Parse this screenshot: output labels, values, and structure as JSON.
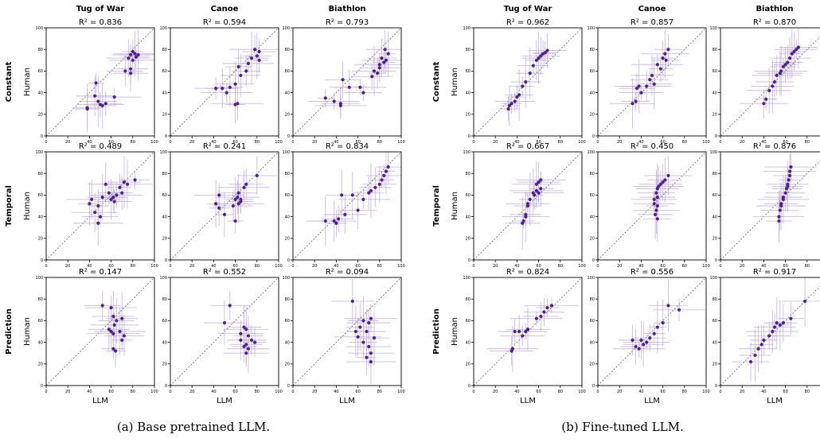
{
  "colors": {
    "marker": "#4b2391",
    "errorbar": "#b9a4dc",
    "diagonal": "#666666",
    "axis": "#000000"
  },
  "figure": {
    "group_captions": [
      "(a) Base pretrained LLM.",
      "(b) Fine-tuned LLM."
    ],
    "column_titles": [
      "Tug of War",
      "Canoe",
      "Biathlon"
    ],
    "row_titles": [
      "Constant",
      "Temporal",
      "Prediction"
    ],
    "xlabel": "LLM",
    "ylabel": "Human",
    "ticks": [
      "0",
      "20",
      "40",
      "60",
      "80",
      "100"
    ]
  },
  "chart_data": [
    {
      "type": "scatter",
      "group": "(a) Base pretrained LLM.",
      "row": "Constant",
      "col": "Tug of War",
      "r2_label": "R² = 0.836",
      "xlim": [
        0,
        100
      ],
      "ylim": [
        0,
        100
      ],
      "xlabel": "",
      "ylabel": "Human",
      "grid": false,
      "x": [
        80,
        82,
        78,
        85,
        83,
        80,
        76,
        78,
        73,
        78,
        46,
        45,
        48,
        55,
        50,
        52,
        38,
        38,
        63
      ],
      "y": [
        78,
        76,
        75,
        75,
        73,
        70,
        72,
        62,
        60,
        58,
        49,
        37,
        32,
        30,
        29,
        28,
        26,
        25,
        36
      ]
    },
    {
      "type": "scatter",
      "group": "(a) Base pretrained LLM.",
      "row": "Constant",
      "col": "Canoe",
      "r2_label": "R² = 0.594",
      "xlim": [
        0,
        100
      ],
      "ylim": [
        0,
        100
      ],
      "xlabel": "",
      "ylabel": "",
      "grid": false,
      "x": [
        78,
        82,
        80,
        75,
        82,
        72,
        63,
        70,
        65,
        60,
        48,
        55,
        52,
        62,
        60,
        42
      ],
      "y": [
        80,
        78,
        74,
        72,
        70,
        67,
        64,
        60,
        56,
        48,
        44,
        45,
        40,
        30,
        29,
        44
      ]
    },
    {
      "type": "scatter",
      "group": "(a) Base pretrained LLM.",
      "row": "Constant",
      "col": "Biathlon",
      "r2_label": "R² = 0.793",
      "xlim": [
        0,
        100
      ],
      "ylim": [
        0,
        100
      ],
      "xlabel": "",
      "ylabel": "",
      "grid": false,
      "x": [
        85,
        88,
        82,
        86,
        84,
        80,
        80,
        75,
        78,
        73,
        62,
        65,
        46,
        52,
        44,
        44,
        38,
        30
      ],
      "y": [
        80,
        76,
        72,
        70,
        68,
        66,
        63,
        60,
        58,
        55,
        45,
        40,
        52,
        45,
        30,
        28,
        32,
        35
      ]
    },
    {
      "type": "scatter",
      "group": "(a) Base pretrained LLM.",
      "row": "Temporal",
      "col": "Tug of War",
      "r2_label": "R² = 0.489",
      "xlim": [
        0,
        100
      ],
      "ylim": [
        0,
        100
      ],
      "xlabel": "",
      "ylabel": "Human",
      "grid": false,
      "x": [
        82,
        75,
        72,
        68,
        70,
        65,
        62,
        58,
        55,
        60,
        63,
        52,
        48,
        45,
        40,
        50,
        48,
        42
      ],
      "y": [
        74,
        70,
        72,
        67,
        62,
        60,
        58,
        62,
        70,
        56,
        54,
        58,
        50,
        44,
        52,
        40,
        34,
        56
      ]
    },
    {
      "type": "scatter",
      "group": "(a) Base pretrained LLM.",
      "row": "Temporal",
      "col": "Canoe",
      "r2_label": "R² = 0.241",
      "xlim": [
        0,
        100
      ],
      "ylim": [
        0,
        100
      ],
      "xlabel": "",
      "ylabel": "",
      "grid": false,
      "x": [
        80,
        70,
        68,
        62,
        60,
        65,
        63,
        58,
        45,
        42,
        45,
        50,
        60,
        65,
        63
      ],
      "y": [
        78,
        70,
        67,
        58,
        56,
        54,
        52,
        50,
        60,
        52,
        48,
        42,
        36,
        56,
        62
      ]
    },
    {
      "type": "scatter",
      "group": "(a) Base pretrained LLM.",
      "row": "Temporal",
      "col": "Biathlon",
      "r2_label": "R² = 0.834",
      "xlim": [
        0,
        100
      ],
      "ylim": [
        0,
        100
      ],
      "xlabel": "",
      "ylabel": "",
      "grid": false,
      "x": [
        88,
        86,
        84,
        82,
        80,
        76,
        72,
        70,
        65,
        60,
        55,
        45,
        48,
        42,
        40,
        38,
        30
      ],
      "y": [
        86,
        82,
        78,
        74,
        70,
        67,
        64,
        62,
        56,
        46,
        60,
        60,
        42,
        38,
        34,
        36,
        36
      ]
    },
    {
      "type": "scatter",
      "group": "(a) Base pretrained LLM.",
      "row": "Prediction",
      "col": "Tug of War",
      "r2_label": "R² = 0.147",
      "xlim": [
        0,
        100
      ],
      "ylim": [
        0,
        100
      ],
      "xlabel": "",
      "ylabel": "Human",
      "grid": false,
      "x": [
        52,
        60,
        62,
        65,
        70,
        63,
        58,
        60,
        62,
        68,
        72,
        70,
        62,
        64
      ],
      "y": [
        74,
        72,
        64,
        60,
        62,
        56,
        52,
        50,
        48,
        50,
        46,
        42,
        34,
        32
      ]
    },
    {
      "type": "scatter",
      "group": "(a) Base pretrained LLM.",
      "row": "Prediction",
      "col": "Canoe",
      "r2_label": "R² = 0.552",
      "xlim": [
        0,
        100
      ],
      "ylim": [
        0,
        100
      ],
      "xlabel": "",
      "ylabel": "",
      "grid": false,
      "x": [
        55,
        50,
        68,
        70,
        65,
        72,
        75,
        78,
        70,
        65,
        68,
        72,
        70
      ],
      "y": [
        74,
        58,
        54,
        52,
        48,
        46,
        42,
        40,
        38,
        42,
        36,
        34,
        30
      ]
    },
    {
      "type": "scatter",
      "group": "(a) Base pretrained LLM.",
      "row": "Prediction",
      "col": "Biathlon",
      "r2_label": "R² = 0.094",
      "xlim": [
        0,
        100
      ],
      "ylim": [
        0,
        100
      ],
      "xlabel": "",
      "ylabel": "",
      "grid": false,
      "x": [
        55,
        65,
        70,
        62,
        58,
        60,
        72,
        68,
        65,
        72,
        75,
        70,
        68,
        72
      ],
      "y": [
        78,
        60,
        58,
        54,
        50,
        45,
        62,
        50,
        40,
        30,
        44,
        36,
        26,
        22
      ]
    },
    {
      "type": "scatter",
      "group": "(b) Fine-tuned LLM.",
      "row": "Constant",
      "col": "Tug of War",
      "r2_label": "R² = 0.962",
      "xlim": [
        0,
        100
      ],
      "ylim": [
        0,
        100
      ],
      "xlabel": "",
      "ylabel": "Human",
      "grid": false,
      "x": [
        68,
        66,
        64,
        62,
        60,
        58,
        55,
        52,
        48,
        45,
        42,
        40,
        38,
        35,
        33,
        32
      ],
      "y": [
        79,
        77,
        76,
        74,
        72,
        70,
        65,
        58,
        50,
        46,
        38,
        36,
        32,
        30,
        28,
        25
      ]
    },
    {
      "type": "scatter",
      "group": "(b) Fine-tuned LLM.",
      "row": "Constant",
      "col": "Canoe",
      "r2_label": "R² = 0.857",
      "xlim": [
        0,
        100
      ],
      "ylim": [
        0,
        100
      ],
      "xlabel": "",
      "ylabel": "",
      "grid": false,
      "x": [
        65,
        62,
        60,
        63,
        55,
        58,
        50,
        48,
        52,
        45,
        38,
        36,
        40,
        35,
        32
      ],
      "y": [
        80,
        76,
        72,
        70,
        66,
        62,
        56,
        52,
        48,
        46,
        46,
        44,
        40,
        32,
        30
      ]
    },
    {
      "type": "scatter",
      "group": "(b) Fine-tuned LLM.",
      "row": "Constant",
      "col": "Biathlon",
      "r2_label": "R² = 0.870",
      "xlim": [
        0,
        100
      ],
      "ylim": [
        0,
        100
      ],
      "xlabel": "",
      "ylabel": "",
      "grid": false,
      "x": [
        72,
        70,
        68,
        66,
        64,
        62,
        60,
        58,
        56,
        55,
        52,
        50,
        48,
        45,
        42,
        40
      ],
      "y": [
        82,
        80,
        78,
        76,
        72,
        68,
        66,
        64,
        60,
        58,
        56,
        50,
        46,
        42,
        34,
        30
      ]
    },
    {
      "type": "scatter",
      "group": "(b) Fine-tuned LLM.",
      "row": "Temporal",
      "col": "Tug of War",
      "r2_label": "R² = 0.667",
      "xlim": [
        0,
        100
      ],
      "ylim": [
        0,
        100
      ],
      "xlabel": "",
      "ylabel": "Human",
      "grid": false,
      "x": [
        62,
        60,
        58,
        62,
        58,
        55,
        60,
        56,
        52,
        50,
        50,
        48,
        48,
        46,
        45
      ],
      "y": [
        74,
        72,
        70,
        66,
        64,
        62,
        62,
        60,
        56,
        52,
        50,
        42,
        40,
        36,
        34
      ]
    },
    {
      "type": "scatter",
      "group": "(b) Fine-tuned LLM.",
      "row": "Temporal",
      "col": "Canoe",
      "r2_label": "R² = 0.450",
      "xlim": [
        0,
        100
      ],
      "ylim": [
        0,
        100
      ],
      "xlabel": "",
      "ylabel": "",
      "grid": false,
      "x": [
        65,
        62,
        60,
        58,
        56,
        55,
        54,
        55,
        52,
        52,
        55,
        54,
        53,
        55
      ],
      "y": [
        78,
        74,
        72,
        70,
        68,
        66,
        62,
        58,
        56,
        52,
        50,
        46,
        42,
        38
      ]
    },
    {
      "type": "scatter",
      "group": "(b) Fine-tuned LLM.",
      "row": "Temporal",
      "col": "Biathlon",
      "r2_label": "R² = 0.876",
      "xlim": [
        0,
        100
      ],
      "ylim": [
        0,
        100
      ],
      "xlabel": "",
      "ylabel": "",
      "grid": false,
      "x": [
        65,
        64,
        64,
        63,
        62,
        62,
        61,
        60,
        58,
        58,
        56,
        56,
        55,
        54,
        54
      ],
      "y": [
        86,
        82,
        78,
        74,
        70,
        68,
        66,
        62,
        58,
        56,
        52,
        50,
        46,
        40,
        36
      ]
    },
    {
      "type": "scatter",
      "group": "(b) Fine-tuned LLM.",
      "row": "Prediction",
      "col": "Tug of War",
      "r2_label": "R² = 0.824",
      "xlim": [
        0,
        100
      ],
      "ylim": [
        0,
        100
      ],
      "xlabel": "",
      "ylabel": "Human",
      "grid": false,
      "x": [
        72,
        68,
        65,
        62,
        58,
        50,
        48,
        45,
        42,
        38,
        36,
        35
      ],
      "y": [
        74,
        72,
        68,
        64,
        62,
        52,
        50,
        46,
        50,
        50,
        34,
        32
      ]
    },
    {
      "type": "scatter",
      "group": "(b) Fine-tuned LLM.",
      "row": "Prediction",
      "col": "Canoe",
      "r2_label": "R² = 0.556",
      "xlim": [
        0,
        100
      ],
      "ylim": [
        0,
        100
      ],
      "xlabel": "",
      "ylabel": "",
      "grid": false,
      "x": [
        75,
        65,
        60,
        55,
        52,
        48,
        45,
        42,
        40,
        38,
        35,
        32
      ],
      "y": [
        70,
        74,
        58,
        54,
        48,
        44,
        40,
        38,
        42,
        34,
        36,
        42
      ]
    },
    {
      "type": "scatter",
      "group": "(b) Fine-tuned LLM.",
      "row": "Prediction",
      "col": "Biathlon",
      "r2_label": "R² = 0.917",
      "xlim": [
        0,
        100
      ],
      "ylim": [
        0,
        100
      ],
      "xlabel": "",
      "ylabel": "",
      "grid": false,
      "x": [
        78,
        65,
        58,
        55,
        52,
        50,
        48,
        45,
        40,
        38,
        35,
        32,
        28
      ],
      "y": [
        78,
        62,
        58,
        56,
        58,
        54,
        50,
        46,
        42,
        38,
        34,
        28,
        22
      ]
    }
  ]
}
